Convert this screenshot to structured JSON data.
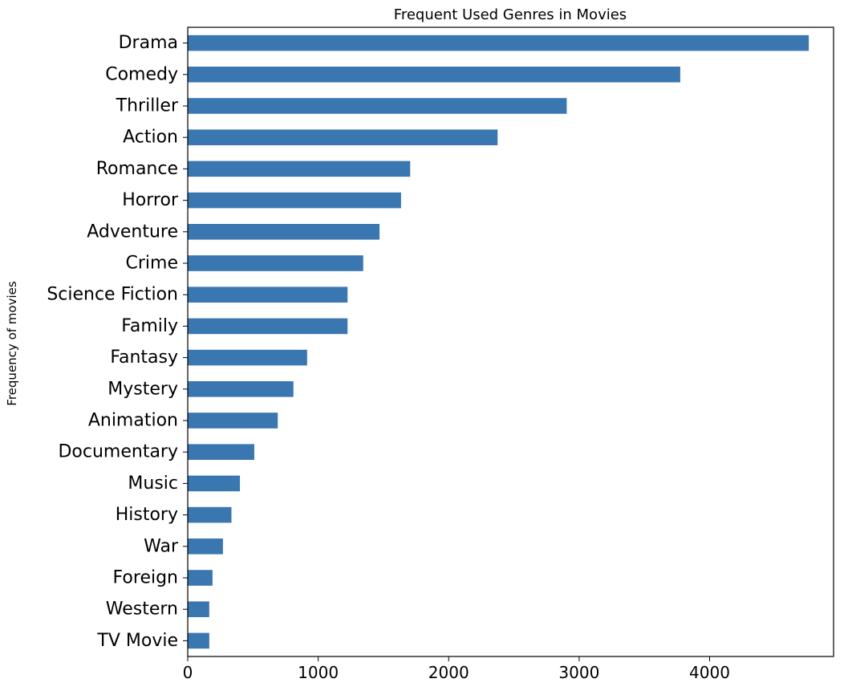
{
  "chart_data": {
    "type": "bar",
    "orientation": "horizontal",
    "title": "Frequent Used Genres in Movies",
    "xlabel": "",
    "ylabel": "Frequency of movies",
    "categories": [
      "Drama",
      "Comedy",
      "Thriller",
      "Action",
      "Romance",
      "Horror",
      "Adventure",
      "Crime",
      "Science Fiction",
      "Family",
      "Fantasy",
      "Mystery",
      "Animation",
      "Documentary",
      "Music",
      "History",
      "War",
      "Foreign",
      "Western",
      "TV Movie"
    ],
    "values": [
      4760,
      3775,
      2905,
      2375,
      1705,
      1635,
      1470,
      1345,
      1225,
      1225,
      915,
      810,
      690,
      510,
      400,
      335,
      270,
      190,
      165,
      165
    ],
    "xlim": [
      0,
      4950
    ],
    "xticks": [
      "0",
      "1000",
      "2000",
      "3000",
      "4000"
    ],
    "bar_color": "#3a76b0",
    "grid": false,
    "legend": "none"
  }
}
